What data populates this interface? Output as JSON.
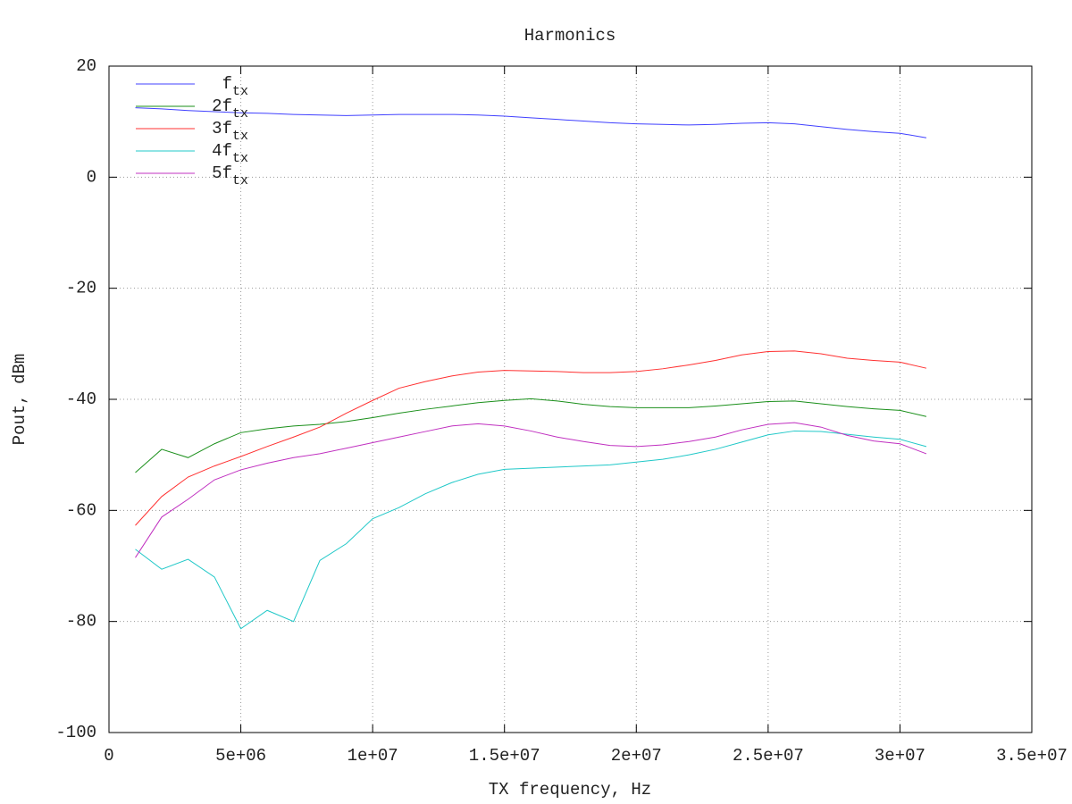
{
  "chart_data": {
    "type": "line",
    "title": "Harmonics",
    "x_label": "TX frequency, Hz",
    "y_label": "Pout, dBm",
    "x": [
      1000000,
      2000000,
      3000000,
      4000000,
      5000000,
      6000000,
      7000000,
      8000000,
      9000000,
      10000000,
      11000000,
      12000000,
      13000000,
      14000000,
      15000000,
      16000000,
      17000000,
      18000000,
      19000000,
      20000000,
      21000000,
      22000000,
      23000000,
      24000000,
      25000000,
      26000000,
      27000000,
      28000000,
      29000000,
      30000000,
      31000000
    ],
    "series": [
      {
        "name": "f",
        "subscript": "tx",
        "color": "#4040ff",
        "values": [
          12.5,
          12.3,
          12,
          11.8,
          11.6,
          11.5,
          11.3,
          11.2,
          11.1,
          11.2,
          11.3,
          11.3,
          11.3,
          11.2,
          11,
          10.7,
          10.4,
          10.1,
          9.8,
          9.6,
          9.5,
          9.4,
          9.5,
          9.7,
          9.8,
          9.6,
          9.1,
          8.6,
          8.2,
          7.9,
          7.1
        ]
      },
      {
        "name": "2f",
        "subscript": "tx",
        "color": "#1a8f1a",
        "values": [
          -53.2,
          -49,
          -50.5,
          -48,
          -46,
          -45.3,
          -44.8,
          -44.5,
          -44,
          -43.3,
          -42.5,
          -41.8,
          -41.2,
          -40.6,
          -40.2,
          -39.9,
          -40.3,
          -40.9,
          -41.3,
          -41.5,
          -41.5,
          -41.5,
          -41.2,
          -40.8,
          -40.4,
          -40.3,
          -40.8,
          -41.3,
          -41.7,
          -42,
          -43.1
        ]
      },
      {
        "name": "3f",
        "subscript": "tx",
        "color": "#ff3030",
        "values": [
          -62.7,
          -57.5,
          -54,
          -52,
          -50.3,
          -48.5,
          -46.8,
          -45,
          -42.5,
          -40.2,
          -38,
          -36.8,
          -35.8,
          -35.1,
          -34.8,
          -34.9,
          -35,
          -35.2,
          -35.2,
          -35,
          -34.5,
          -33.8,
          -33,
          -32,
          -31.4,
          -31.3,
          -31.8,
          -32.6,
          -33,
          -33.3,
          -34.4
        ]
      },
      {
        "name": "4f",
        "subscript": "tx",
        "color": "#20c8c8",
        "values": [
          -67,
          -70.6,
          -68.8,
          -72,
          -81.3,
          -78,
          -80,
          -69,
          -66,
          -61.5,
          -59.5,
          -57,
          -55,
          -53.5,
          -52.6,
          -52.4,
          -52.2,
          -52,
          -51.8,
          -51.3,
          -50.8,
          -50,
          -49,
          -47.7,
          -46.4,
          -45.7,
          -45.8,
          -46.3,
          -46.8,
          -47.2,
          -48.5
        ]
      },
      {
        "name": "5f",
        "subscript": "tx",
        "color": "#c030c0",
        "values": [
          -68.5,
          -61.2,
          -58,
          -54.5,
          -52.7,
          -51.5,
          -50.5,
          -49.8,
          -48.8,
          -47.8,
          -46.8,
          -45.8,
          -44.8,
          -44.4,
          -44.8,
          -45.7,
          -46.8,
          -47.6,
          -48.3,
          -48.5,
          -48.2,
          -47.6,
          -46.8,
          -45.5,
          -44.5,
          -44.2,
          -45,
          -46.5,
          -47.5,
          -48,
          -49.8
        ]
      }
    ],
    "xlim": [
      0,
      35000000
    ],
    "xticks": [
      0,
      {
        "value": 5000000,
        "label": "5e+06"
      },
      {
        "value": 10000000,
        "label": "1e+07"
      },
      {
        "value": 15000000,
        "label": "1.5e+07"
      },
      {
        "value": 20000000,
        "label": "2e+07"
      },
      {
        "value": 25000000,
        "label": "2.5e+07"
      },
      {
        "value": 30000000,
        "label": "3e+07"
      },
      {
        "value": 35000000,
        "label": "3.5e+07"
      }
    ],
    "ylim": [
      -100,
      20
    ],
    "yticks": [
      -100,
      -80,
      -60,
      -40,
      -20,
      0,
      20
    ],
    "grid": true,
    "legend": "top left"
  }
}
